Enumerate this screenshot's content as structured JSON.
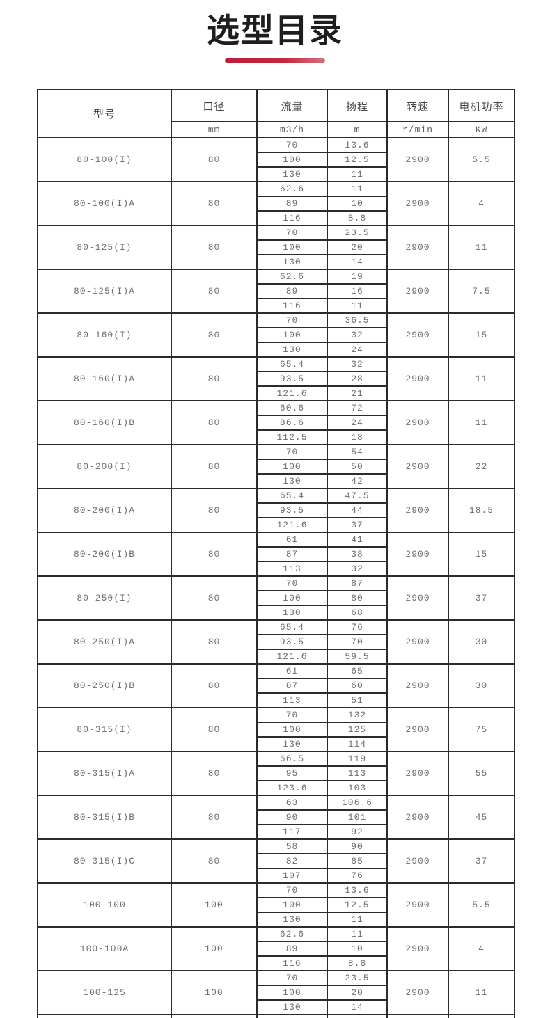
{
  "page": {
    "title": "选型目录"
  },
  "table": {
    "model_header": "型号",
    "columns": [
      {
        "label": "口径",
        "unit": "mm"
      },
      {
        "label": "流量",
        "unit": "m3/h"
      },
      {
        "label": "扬程",
        "unit": "m"
      },
      {
        "label": "转速",
        "unit": "r/min"
      },
      {
        "label": "电机功率",
        "unit": "KW"
      }
    ],
    "rows": [
      {
        "model": "80-100(I)",
        "diameter": "80",
        "flow": [
          "70",
          "100",
          "130"
        ],
        "head": [
          "13.6",
          "12.5",
          "11"
        ],
        "speed": "2900",
        "power": "5.5"
      },
      {
        "model": "80-100(I)A",
        "diameter": "80",
        "flow": [
          "62.6",
          "89",
          "116"
        ],
        "head": [
          "11",
          "10",
          "8.8"
        ],
        "speed": "2900",
        "power": "4"
      },
      {
        "model": "80-125(I)",
        "diameter": "80",
        "flow": [
          "70",
          "100",
          "130"
        ],
        "head": [
          "23.5",
          "20",
          "14"
        ],
        "speed": "2900",
        "power": "11"
      },
      {
        "model": "80-125(I)A",
        "diameter": "80",
        "flow": [
          "62.6",
          "89",
          "116"
        ],
        "head": [
          "19",
          "16",
          "11"
        ],
        "speed": "2900",
        "power": "7.5"
      },
      {
        "model": "80-160(I)",
        "diameter": "80",
        "flow": [
          "70",
          "100",
          "130"
        ],
        "head": [
          "36.5",
          "32",
          "24"
        ],
        "speed": "2900",
        "power": "15"
      },
      {
        "model": "80-160(I)A",
        "diameter": "80",
        "flow": [
          "65.4",
          "93.5",
          "121.6"
        ],
        "head": [
          "32",
          "28",
          "21"
        ],
        "speed": "2900",
        "power": "11"
      },
      {
        "model": "80-160(I)B",
        "diameter": "80",
        "flow": [
          "60.6",
          "86.6",
          "112.5"
        ],
        "head": [
          "72",
          "24",
          "18"
        ],
        "speed": "2900",
        "power": "11"
      },
      {
        "model": "80-200(I)",
        "diameter": "80",
        "flow": [
          "70",
          "100",
          "130"
        ],
        "head": [
          "54",
          "50",
          "42"
        ],
        "speed": "2900",
        "power": "22"
      },
      {
        "model": "80-200(I)A",
        "diameter": "80",
        "flow": [
          "65.4",
          "93.5",
          "121.6"
        ],
        "head": [
          "47.5",
          "44",
          "37"
        ],
        "speed": "2900",
        "power": "18.5"
      },
      {
        "model": "80-200(I)B",
        "diameter": "80",
        "flow": [
          "61",
          "87",
          "113"
        ],
        "head": [
          "41",
          "38",
          "32"
        ],
        "speed": "2900",
        "power": "15"
      },
      {
        "model": "80-250(I)",
        "diameter": "80",
        "flow": [
          "70",
          "100",
          "130"
        ],
        "head": [
          "87",
          "80",
          "68"
        ],
        "speed": "2900",
        "power": "37"
      },
      {
        "model": "80-250(I)A",
        "diameter": "80",
        "flow": [
          "65.4",
          "93.5",
          "121.6"
        ],
        "head": [
          "76",
          "70",
          "59.5"
        ],
        "speed": "2900",
        "power": "30"
      },
      {
        "model": "80-250(I)B",
        "diameter": "80",
        "flow": [
          "61",
          "87",
          "113"
        ],
        "head": [
          "65",
          "60",
          "51"
        ],
        "speed": "2900",
        "power": "30"
      },
      {
        "model": "80-315(I)",
        "diameter": "80",
        "flow": [
          "70",
          "100",
          "130"
        ],
        "head": [
          "132",
          "125",
          "114"
        ],
        "speed": "2900",
        "power": "75"
      },
      {
        "model": "80-315(I)A",
        "diameter": "80",
        "flow": [
          "66.5",
          "95",
          "123.6"
        ],
        "head": [
          "119",
          "113",
          "103"
        ],
        "speed": "2900",
        "power": "55"
      },
      {
        "model": "80-315(I)B",
        "diameter": "80",
        "flow": [
          "63",
          "90",
          "117"
        ],
        "head": [
          "106.6",
          "101",
          "92"
        ],
        "speed": "2900",
        "power": "45"
      },
      {
        "model": "80-315(I)C",
        "diameter": "80",
        "flow": [
          "58",
          "82",
          "107"
        ],
        "head": [
          "90",
          "85",
          "76"
        ],
        "speed": "2900",
        "power": "37"
      },
      {
        "model": "100-100",
        "diameter": "100",
        "flow": [
          "70",
          "100",
          "130"
        ],
        "head": [
          "13.6",
          "12.5",
          "11"
        ],
        "speed": "2900",
        "power": "5.5"
      },
      {
        "model": "100-100A",
        "diameter": "100",
        "flow": [
          "62.6",
          "89",
          "116"
        ],
        "head": [
          "11",
          "10",
          "8.8"
        ],
        "speed": "2900",
        "power": "4"
      },
      {
        "model": "100-125",
        "diameter": "100",
        "flow": [
          "70",
          "100",
          "130"
        ],
        "head": [
          "23.5",
          "20",
          "14"
        ],
        "speed": "2900",
        "power": "11"
      }
    ]
  },
  "colors": {
    "accent_line_left": "#b91f38",
    "accent_line_right": "#d4717f",
    "table_border": "#2b2b2b",
    "title_text": "#1e1e1e",
    "data_text": "#6e6e6e"
  }
}
